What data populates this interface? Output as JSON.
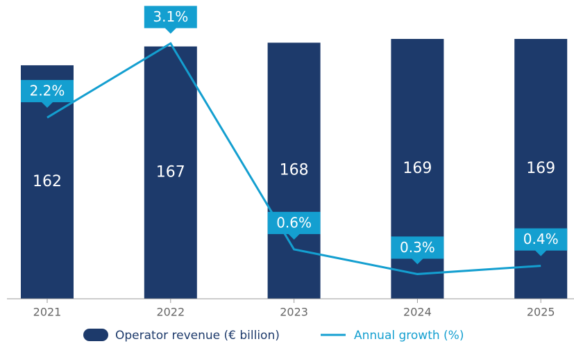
{
  "chart_data": {
    "type": "bar-line",
    "categories": [
      "2021",
      "2022",
      "2023",
      "2024",
      "2025"
    ],
    "series": [
      {
        "name": "Operator revenue (€ billion)",
        "type": "bar",
        "color": "#1d3a6b",
        "values": [
          162,
          167,
          168,
          169,
          169
        ]
      },
      {
        "name": "Annual growth (%)",
        "type": "line",
        "axis": "y2",
        "color": "#149fd0",
        "values": [
          2.2,
          3.1,
          0.6,
          0.3,
          0.4
        ],
        "value_labels": [
          "2.2%",
          "3.1%",
          "0.6%",
          "0.3%",
          "0.4%"
        ]
      }
    ],
    "ylim": [
      100,
      170
    ],
    "y2lim": [
      0,
      3.2
    ],
    "legend": "bottom"
  }
}
